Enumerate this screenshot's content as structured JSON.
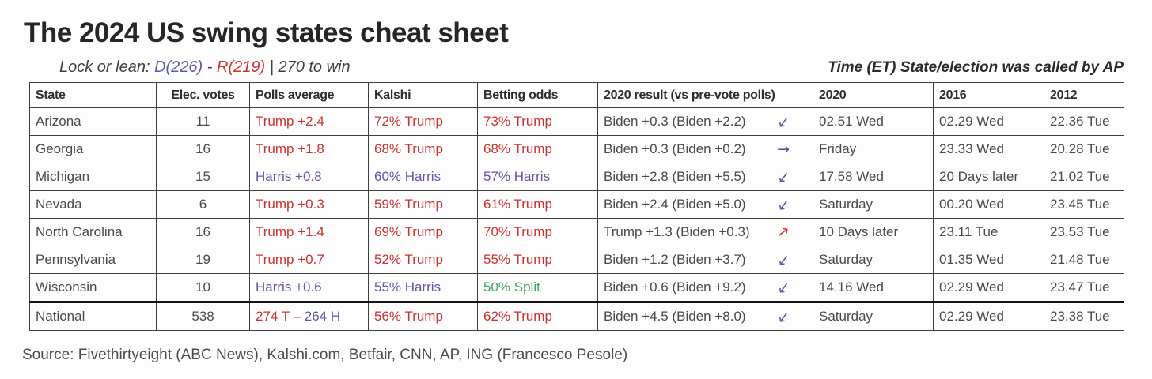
{
  "title": "The 2024 US swing states cheat sheet",
  "subtitle": {
    "prefix": "Lock or lean: ",
    "dem": "D(226)",
    "sep": " - ",
    "rep": "R(219)",
    "suffix": " | 270 to win"
  },
  "right_note": "Time (ET) State/election was called by AP",
  "source": "Source: Fivethirtyeight (ABC News), Kalshi.com, Betfair, CNN, AP, ING (Francesco Pesole)",
  "colors": {
    "red": "#c93431",
    "blue": "#5a5aaa",
    "green": "#3fa45c",
    "body_text": "#4a4a4a",
    "header_text": "#2d2d2d",
    "border": "#3e3e3e"
  },
  "table": {
    "headers": [
      "State",
      "Elec. votes",
      "Polls average",
      "Kalshi",
      "Betting odds",
      "2020 result (vs pre-vote polls)",
      "2020",
      "2016",
      "2012"
    ],
    "rows": [
      {
        "state": "Arizona",
        "ev": "11",
        "polls": {
          "parts": [
            {
              "text": "Trump +2.4",
              "color": "red"
            }
          ]
        },
        "kalshi": {
          "text": "72% Trump",
          "color": "red"
        },
        "betting": {
          "text": "73% Trump",
          "color": "red"
        },
        "result2020": {
          "text": "Biden +0.3 (Biden +2.2)",
          "arrow": "down-left",
          "arrow_color": "blue"
        },
        "t2020": "02.51 Wed",
        "t2016": "02.29 Wed",
        "t2012": "22.36 Tue"
      },
      {
        "state": "Georgia",
        "ev": "16",
        "polls": {
          "parts": [
            {
              "text": "Trump +1.8",
              "color": "red"
            }
          ]
        },
        "kalshi": {
          "text": "68% Trump",
          "color": "red"
        },
        "betting": {
          "text": "68% Trump",
          "color": "red"
        },
        "result2020": {
          "text": "Biden +0.3 (Biden +0.2)",
          "arrow": "right",
          "arrow_color": "blue"
        },
        "t2020": "Friday",
        "t2016": "23.33 Wed",
        "t2012": "20.28 Tue"
      },
      {
        "state": "Michigan",
        "ev": "15",
        "polls": {
          "parts": [
            {
              "text": "Harris +0.8",
              "color": "blue"
            }
          ]
        },
        "kalshi": {
          "text": "60% Harris",
          "color": "blue"
        },
        "betting": {
          "text": "57% Harris",
          "color": "blue"
        },
        "result2020": {
          "text": "Biden +2.8 (Biden +5.5)",
          "arrow": "down-left",
          "arrow_color": "blue"
        },
        "t2020": "17.58 Wed",
        "t2016": "20 Days later",
        "t2012": "21.02 Tue"
      },
      {
        "state": "Nevada",
        "ev": "6",
        "polls": {
          "parts": [
            {
              "text": "Trump +0.3",
              "color": "red"
            }
          ]
        },
        "kalshi": {
          "text": "59% Trump",
          "color": "red"
        },
        "betting": {
          "text": "61% Trump",
          "color": "red"
        },
        "result2020": {
          "text": "Biden +2.4 (Biden +5.0)",
          "arrow": "down-left",
          "arrow_color": "blue"
        },
        "t2020": "Saturday",
        "t2016": "00.20 Wed",
        "t2012": "23.45 Tue"
      },
      {
        "state": "North Carolina",
        "ev": "16",
        "polls": {
          "parts": [
            {
              "text": "Trump +1.4",
              "color": "red"
            }
          ]
        },
        "kalshi": {
          "text": "69% Trump",
          "color": "red"
        },
        "betting": {
          "text": "70% Trump",
          "color": "red"
        },
        "result2020": {
          "text": "Trump +1.3 (Biden +0.3)",
          "arrow": "up-right",
          "arrow_color": "red"
        },
        "t2020": "10 Days later",
        "t2016": "23.11 Tue",
        "t2012": "23.53 Tue"
      },
      {
        "state": "Pennsylvania",
        "ev": "19",
        "polls": {
          "parts": [
            {
              "text": "Trump +0.7",
              "color": "red"
            }
          ]
        },
        "kalshi": {
          "text": "52% Trump",
          "color": "red"
        },
        "betting": {
          "text": "55% Trump",
          "color": "red"
        },
        "result2020": {
          "text": "Biden +1.2 (Biden +3.7)",
          "arrow": "down-left",
          "arrow_color": "blue"
        },
        "t2020": "Saturday",
        "t2016": "01.35 Wed",
        "t2012": "21.48 Tue"
      },
      {
        "state": "Wisconsin",
        "ev": "10",
        "polls": {
          "parts": [
            {
              "text": "Harris +0.6",
              "color": "blue"
            }
          ]
        },
        "kalshi": {
          "text": "55% Harris",
          "color": "blue"
        },
        "betting": {
          "text": "50% Split",
          "color": "green"
        },
        "result2020": {
          "text": "Biden +0.6 (Biden +9.2)",
          "arrow": "down-left",
          "arrow_color": "blue"
        },
        "t2020": "14.16 Wed",
        "t2016": "02.29 Wed",
        "t2012": "23.47 Tue"
      },
      {
        "state": "National",
        "ev": "538",
        "national": true,
        "polls": {
          "parts": [
            {
              "text": "274 T – ",
              "color": "red"
            },
            {
              "text": "264 H",
              "color": "blue"
            }
          ]
        },
        "kalshi": {
          "text": "56% Trump",
          "color": "red"
        },
        "betting": {
          "text": "62% Trump",
          "color": "red"
        },
        "result2020": {
          "text": "Biden +4.5 (Biden +8.0)",
          "arrow": "down-left",
          "arrow_color": "blue"
        },
        "t2020": "Saturday",
        "t2016": "02.29 Wed",
        "t2012": "23.38 Tue"
      }
    ]
  },
  "chart_data": {
    "type": "table",
    "title": "The 2024 US swing states cheat sheet",
    "columns": [
      "State",
      "Elec. votes",
      "Polls average",
      "Kalshi",
      "Betting odds",
      "2020 result (vs pre-vote polls)",
      "2020",
      "2016",
      "2012"
    ],
    "rows": [
      [
        "Arizona",
        "11",
        "Trump +2.4",
        "72% Trump",
        "73% Trump",
        "Biden +0.3 (Biden +2.2) ↙",
        "02.51 Wed",
        "02.29 Wed",
        "22.36 Tue"
      ],
      [
        "Georgia",
        "16",
        "Trump +1.8",
        "68% Trump",
        "68% Trump",
        "Biden +0.3 (Biden +0.2) →",
        "Friday",
        "23.33 Wed",
        "20.28 Tue"
      ],
      [
        "Michigan",
        "15",
        "Harris +0.8",
        "60% Harris",
        "57% Harris",
        "Biden +2.8 (Biden +5.5) ↙",
        "17.58 Wed",
        "20 Days later",
        "21.02 Tue"
      ],
      [
        "Nevada",
        "6",
        "Trump +0.3",
        "59% Trump",
        "61% Trump",
        "Biden +2.4 (Biden +5.0) ↙",
        "Saturday",
        "00.20 Wed",
        "23.45 Tue"
      ],
      [
        "North Carolina",
        "16",
        "Trump +1.4",
        "69% Trump",
        "70% Trump",
        "Trump +1.3 (Biden +0.3) ↗",
        "10 Days later",
        "23.11 Tue",
        "23.53 Tue"
      ],
      [
        "Pennsylvania",
        "19",
        "Trump +0.7",
        "52% Trump",
        "55% Trump",
        "Biden +1.2 (Biden +3.7) ↙",
        "Saturday",
        "01.35 Wed",
        "21.48 Tue"
      ],
      [
        "Wisconsin",
        "10",
        "Harris +0.6",
        "55% Harris",
        "50% Split",
        "Biden +0.6 (Biden +9.2) ↙",
        "14.16 Wed",
        "02.29 Wed",
        "23.47 Tue"
      ],
      [
        "National",
        "538",
        "274 T – 264 H",
        "56% Trump",
        "62% Trump",
        "Biden +4.5 (Biden +8.0) ↙",
        "Saturday",
        "02.29 Wed",
        "23.38 Tue"
      ]
    ]
  }
}
